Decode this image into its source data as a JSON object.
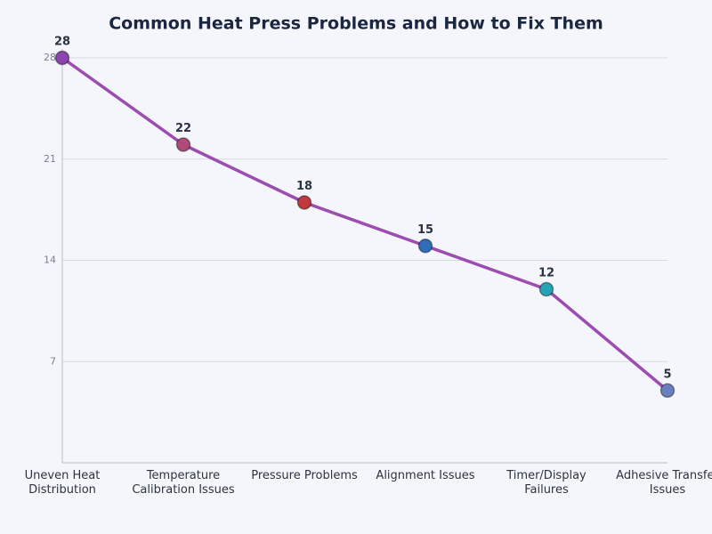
{
  "chart_data": {
    "type": "line",
    "title": "Common Heat Press Problems and How to Fix Them",
    "categories": [
      "Uneven Heat\nDistribution",
      "Temperature\nCalibration Issues",
      "Pressure Problems",
      "Alignment Issues",
      "Timer/Display\nFailures",
      "Adhesive Transfer\nIssues"
    ],
    "values": [
      28,
      22,
      18,
      15,
      12,
      5
    ],
    "color": "#9b4db0",
    "point_colors": [
      "#8e44ad",
      "#b04a7a",
      "#c0393f",
      "#2f6db8",
      "#26a3b5",
      "#6a7fbd"
    ],
    "ylim": [
      0,
      28
    ],
    "yticks": [
      7,
      14,
      21,
      28
    ],
    "grid": true
  }
}
